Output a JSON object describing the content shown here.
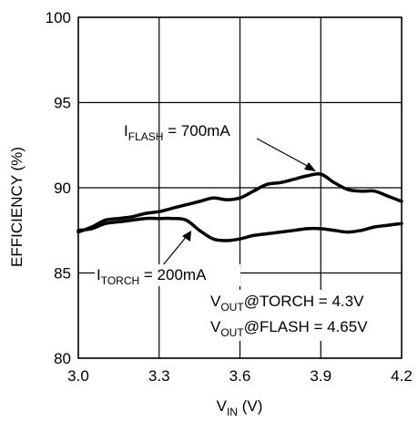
{
  "chart_data": {
    "type": "line",
    "title": "",
    "xlabel_main": "V",
    "xlabel_sub": "IN",
    "xlabel_unit": " (V)",
    "ylabel": "EFFICIENCY (%)",
    "xlim": [
      3.0,
      4.2
    ],
    "ylim": [
      80,
      100
    ],
    "grid": true,
    "x_ticks": [
      "3.0",
      "3.3",
      "3.6",
      "3.9",
      "4.2"
    ],
    "y_ticks": [
      "80",
      "85",
      "90",
      "95",
      "100"
    ],
    "series": [
      {
        "name": "IFLASH = 700mA",
        "x": [
          3.0,
          3.05,
          3.1,
          3.15,
          3.2,
          3.25,
          3.3,
          3.35,
          3.4,
          3.45,
          3.5,
          3.55,
          3.6,
          3.65,
          3.7,
          3.75,
          3.8,
          3.85,
          3.9,
          3.95,
          4.0,
          4.05,
          4.1,
          4.15,
          4.2
        ],
        "y": [
          87.4,
          87.7,
          88.1,
          88.2,
          88.3,
          88.5,
          88.6,
          88.8,
          89.0,
          89.2,
          89.4,
          89.3,
          89.4,
          89.8,
          90.2,
          90.3,
          90.5,
          90.7,
          90.8,
          90.3,
          89.9,
          89.8,
          89.8,
          89.5,
          89.2
        ]
      },
      {
        "name": "ITORCH = 200mA",
        "x": [
          3.0,
          3.05,
          3.1,
          3.15,
          3.2,
          3.25,
          3.3,
          3.35,
          3.4,
          3.45,
          3.5,
          3.55,
          3.6,
          3.65,
          3.7,
          3.75,
          3.8,
          3.85,
          3.9,
          3.95,
          4.0,
          4.05,
          4.1,
          4.15,
          4.2
        ],
        "y": [
          87.5,
          87.6,
          87.9,
          88.0,
          88.1,
          88.2,
          88.2,
          88.2,
          88.1,
          87.5,
          87.0,
          86.9,
          87.0,
          87.2,
          87.3,
          87.4,
          87.5,
          87.6,
          87.6,
          87.5,
          87.4,
          87.5,
          87.7,
          87.8,
          87.9
        ]
      }
    ],
    "annotations": {
      "flash": {
        "main": "I",
        "sub": "FLASH",
        "rest": " = 700mA"
      },
      "torch": {
        "main": "I",
        "sub": "TORCH",
        "rest": " = 200mA"
      },
      "cond1": {
        "main": "V",
        "sub": "OUT",
        "rest": "@TORCH = 4.3V"
      },
      "cond2": {
        "main": "V",
        "sub": "OUT",
        "rest": "@FLASH = 4.65V"
      }
    }
  }
}
